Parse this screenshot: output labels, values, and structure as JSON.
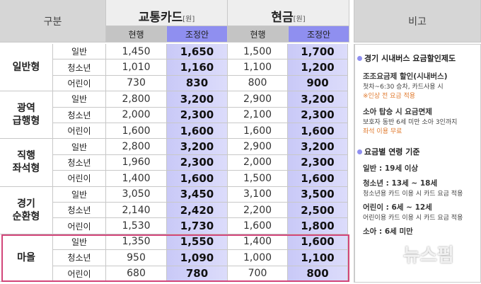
{
  "header": {
    "group": "구분",
    "card": {
      "title": "교통카드",
      "unit": "[원]"
    },
    "cash": {
      "title": "현금",
      "unit": "[원]"
    },
    "current": "현행",
    "proposed": "조정안",
    "notes": "비고"
  },
  "groups": [
    {
      "label": "일반형",
      "rows": [
        [
          "일반",
          "1,450",
          "1,650",
          "1,500",
          "1,700"
        ],
        [
          "청소년",
          "1,010",
          "1,160",
          "1,100",
          "1,200"
        ],
        [
          "어린이",
          "730",
          "830",
          "800",
          "900"
        ]
      ]
    },
    {
      "label": "광역\n급행형",
      "rows": [
        [
          "일반",
          "2,800",
          "3,200",
          "2,900",
          "3,200"
        ],
        [
          "청소년",
          "2,000",
          "2,300",
          "2,100",
          "2,300"
        ],
        [
          "어린이",
          "1,600",
          "1,600",
          "1,600",
          "1,600"
        ]
      ]
    },
    {
      "label": "직행\n좌석형",
      "rows": [
        [
          "일반",
          "2,800",
          "3,200",
          "2,900",
          "3,200"
        ],
        [
          "청소년",
          "1,960",
          "2,300",
          "2,000",
          "2,300"
        ],
        [
          "어린이",
          "1,400",
          "1,600",
          "1,500",
          "1,600"
        ]
      ]
    },
    {
      "label": "경기\n순환형",
      "rows": [
        [
          "일반",
          "3,050",
          "3,450",
          "3,100",
          "3,500"
        ],
        [
          "청소년",
          "2,140",
          "2,420",
          "2,200",
          "2,500"
        ],
        [
          "어린이",
          "1,530",
          "1,730",
          "1,600",
          "1,800"
        ]
      ]
    },
    {
      "label": "마을",
      "rows": [
        [
          "일반",
          "1,350",
          "1,550",
          "1,400",
          "1,600"
        ],
        [
          "청소년",
          "950",
          "1,090",
          "1,000",
          "1,100"
        ],
        [
          "어린이",
          "680",
          "780",
          "700",
          "800"
        ]
      ]
    }
  ],
  "notes": {
    "sections": [
      {
        "heading": "경기 시내버스 요금할인제도",
        "items": [
          {
            "title": "조조요금제 할인(시내버스)",
            "lines": [
              "첫차~6:30 승차, 카드사용 시",
              "※인상 전 요금 적용"
            ]
          },
          {
            "title": "소아 탑승 시 요금면제",
            "lines": [
              "보호자 동반 6세 미만 소아 3인까지",
              "좌석 이용 무료"
            ]
          }
        ]
      },
      {
        "heading": "요금별 연령 기준",
        "items": [
          {
            "title": "일반 : 19세 이상",
            "lines": []
          },
          {
            "title": "청소년 : 13세 ~ 18세",
            "lines": [
              "청소년용 카드 이용 시 카드 요금 적용"
            ]
          },
          {
            "title": "어린이 : 6세 ~ 12세",
            "lines": [
              "어린이용 카드 이용 시 카드 요금 적용"
            ]
          },
          {
            "title": "소아 : 6세 미만",
            "lines": []
          }
        ]
      }
    ]
  },
  "watermark": "뉴스핌"
}
